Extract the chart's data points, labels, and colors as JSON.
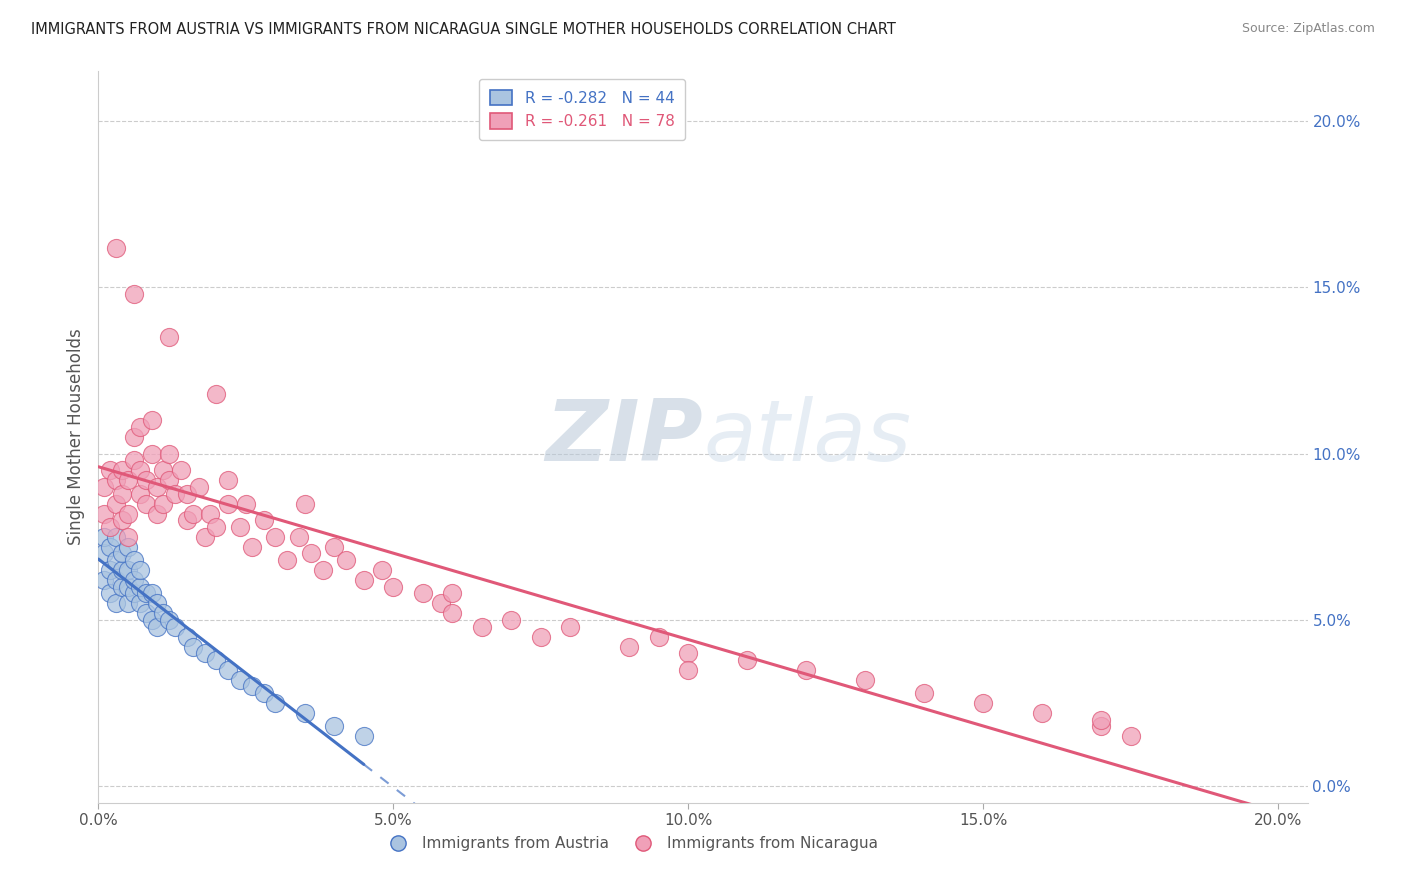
{
  "title": "IMMIGRANTS FROM AUSTRIA VS IMMIGRANTS FROM NICARAGUA SINGLE MOTHER HOUSEHOLDS CORRELATION CHART",
  "source": "Source: ZipAtlas.com",
  "ylabel": "Single Mother Households",
  "legend_austria": "Immigrants from Austria",
  "legend_nicaragua": "Immigrants from Nicaragua",
  "austria_R": -0.282,
  "austria_N": 44,
  "nicaragua_R": -0.261,
  "nicaragua_N": 78,
  "austria_color": "#aac4e0",
  "austria_line_color": "#4472c4",
  "nicaragua_color": "#f0a0b8",
  "nicaragua_line_color": "#e05878",
  "watermark_color": "#ccd8e8",
  "xlim": [
    0.0,
    0.205
  ],
  "ylim": [
    -0.005,
    0.215
  ],
  "xticks": [
    0.0,
    0.05,
    0.1,
    0.15,
    0.2
  ],
  "yticks_right": [
    0.0,
    0.05,
    0.1,
    0.15,
    0.2
  ],
  "austria_x": [
    0.001,
    0.001,
    0.001,
    0.002,
    0.002,
    0.002,
    0.003,
    0.003,
    0.003,
    0.003,
    0.004,
    0.004,
    0.004,
    0.005,
    0.005,
    0.005,
    0.005,
    0.006,
    0.006,
    0.006,
    0.007,
    0.007,
    0.007,
    0.008,
    0.008,
    0.009,
    0.009,
    0.01,
    0.01,
    0.011,
    0.012,
    0.013,
    0.015,
    0.016,
    0.018,
    0.02,
    0.022,
    0.024,
    0.026,
    0.028,
    0.03,
    0.035,
    0.04,
    0.045
  ],
  "austria_y": [
    0.062,
    0.07,
    0.075,
    0.058,
    0.065,
    0.072,
    0.055,
    0.062,
    0.068,
    0.075,
    0.06,
    0.065,
    0.07,
    0.055,
    0.06,
    0.065,
    0.072,
    0.058,
    0.062,
    0.068,
    0.055,
    0.06,
    0.065,
    0.052,
    0.058,
    0.05,
    0.058,
    0.048,
    0.055,
    0.052,
    0.05,
    0.048,
    0.045,
    0.042,
    0.04,
    0.038,
    0.035,
    0.032,
    0.03,
    0.028,
    0.025,
    0.022,
    0.018,
    0.015
  ],
  "nicaragua_x": [
    0.001,
    0.001,
    0.002,
    0.002,
    0.003,
    0.003,
    0.004,
    0.004,
    0.004,
    0.005,
    0.005,
    0.005,
    0.006,
    0.006,
    0.007,
    0.007,
    0.007,
    0.008,
    0.008,
    0.009,
    0.009,
    0.01,
    0.01,
    0.011,
    0.011,
    0.012,
    0.012,
    0.013,
    0.014,
    0.015,
    0.015,
    0.016,
    0.017,
    0.018,
    0.019,
    0.02,
    0.022,
    0.022,
    0.024,
    0.025,
    0.026,
    0.028,
    0.03,
    0.032,
    0.034,
    0.036,
    0.038,
    0.04,
    0.042,
    0.045,
    0.048,
    0.05,
    0.055,
    0.058,
    0.06,
    0.065,
    0.07,
    0.075,
    0.08,
    0.09,
    0.095,
    0.1,
    0.11,
    0.12,
    0.13,
    0.14,
    0.15,
    0.16,
    0.17,
    0.175,
    0.003,
    0.006,
    0.012,
    0.02,
    0.035,
    0.06,
    0.1,
    0.17
  ],
  "nicaragua_y": [
    0.082,
    0.09,
    0.078,
    0.095,
    0.085,
    0.092,
    0.08,
    0.088,
    0.095,
    0.075,
    0.082,
    0.092,
    0.105,
    0.098,
    0.088,
    0.095,
    0.108,
    0.085,
    0.092,
    0.1,
    0.11,
    0.082,
    0.09,
    0.095,
    0.085,
    0.092,
    0.1,
    0.088,
    0.095,
    0.08,
    0.088,
    0.082,
    0.09,
    0.075,
    0.082,
    0.078,
    0.085,
    0.092,
    0.078,
    0.085,
    0.072,
    0.08,
    0.075,
    0.068,
    0.075,
    0.07,
    0.065,
    0.072,
    0.068,
    0.062,
    0.065,
    0.06,
    0.058,
    0.055,
    0.052,
    0.048,
    0.05,
    0.045,
    0.048,
    0.042,
    0.045,
    0.04,
    0.038,
    0.035,
    0.032,
    0.028,
    0.025,
    0.022,
    0.018,
    0.015,
    0.162,
    0.148,
    0.135,
    0.118,
    0.085,
    0.058,
    0.035,
    0.02
  ],
  "austria_trend_start": 0.0,
  "austria_trend_solid_end": 0.045,
  "austria_trend_end": 0.205,
  "nicaragua_trend_start": 0.0,
  "nicaragua_trend_end": 0.205
}
